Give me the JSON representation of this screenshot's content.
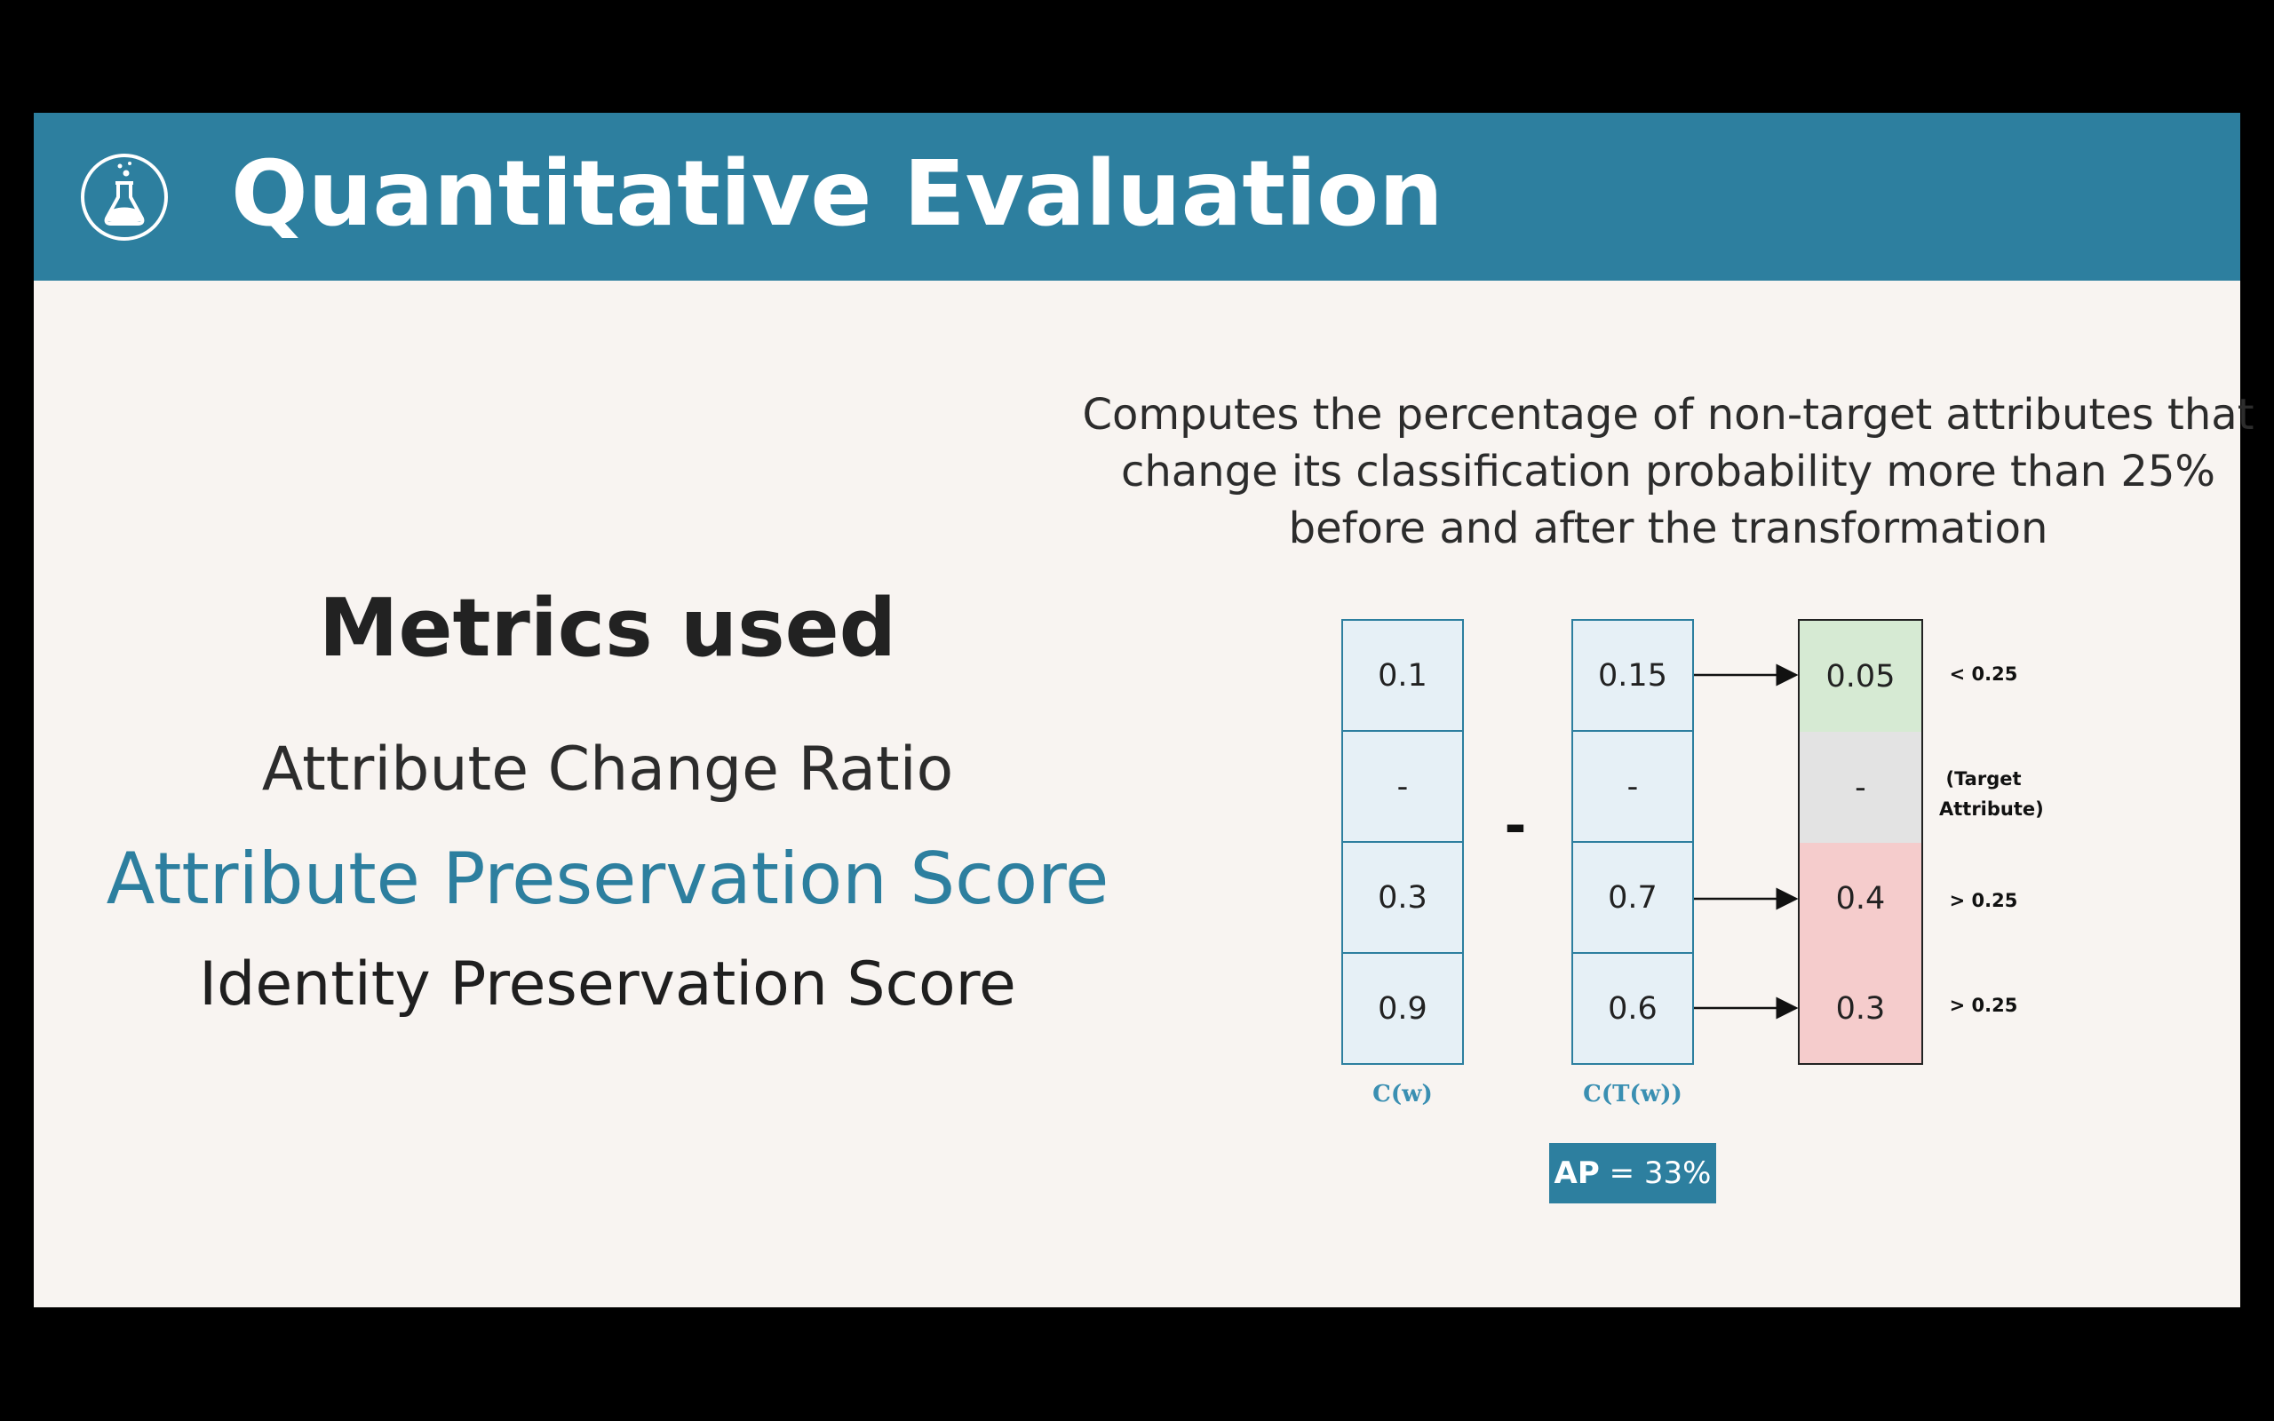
{
  "header": {
    "title": "Quantitative Evaluation",
    "icon": "flask-icon",
    "background": "#2d7f9f"
  },
  "metrics": {
    "heading": "Metrics used",
    "items": [
      "Attribute Change Ratio",
      "Attribute Preservation Score",
      "Identity Preservation Score"
    ],
    "highlight_color": "#2d7f9f"
  },
  "description": "Computes the percentage of non-target attributes that change its classification probability more than 25% before and after the transformation",
  "diagram": {
    "operator": "-",
    "columns": [
      {
        "label": "C(w)",
        "values": [
          "0.1",
          "-",
          "0.3",
          "0.9"
        ]
      },
      {
        "label": "C(T(w))",
        "values": [
          "0.15",
          "-",
          "0.7",
          "0.6"
        ]
      },
      {
        "label": "",
        "values": [
          "0.05",
          "-",
          "0.4",
          "0.3"
        ]
      }
    ],
    "notes": [
      "< 0.25",
      "(Target\nAttribute)",
      "> 0.25",
      "> 0.25"
    ],
    "result_colors": [
      "#d6ead3",
      "#e3e3e3",
      "#f5cccc",
      "#f5cccc"
    ],
    "ap_label": "AP",
    "ap_value": "= 33%"
  }
}
